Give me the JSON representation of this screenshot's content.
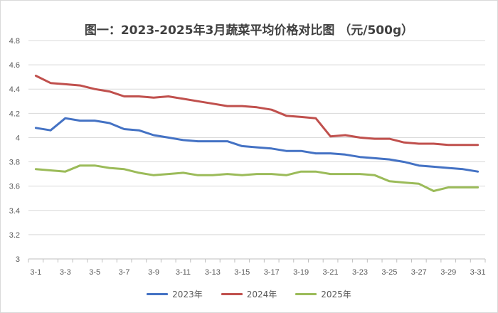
{
  "chart_data": {
    "type": "line",
    "title": "图一：2023-2025年3月蔬菜平均价格对比图 （元/500g）",
    "xlabel": "",
    "ylabel": "",
    "ylim": [
      3,
      4.8
    ],
    "yticks": [
      "3",
      "3.2",
      "3.4",
      "3.6",
      "3.8",
      "4",
      "4.2",
      "4.4",
      "4.6",
      "4.8"
    ],
    "categories": [
      "3-1",
      "3-2",
      "3-3",
      "3-4",
      "3-5",
      "3-6",
      "3-7",
      "3-8",
      "3-9",
      "3-10",
      "3-11",
      "3-12",
      "3-13",
      "3-14",
      "3-15",
      "3-16",
      "3-17",
      "3-18",
      "3-19",
      "3-20",
      "3-21",
      "3-22",
      "3-23",
      "3-24",
      "3-25",
      "3-26",
      "3-27",
      "3-28",
      "3-29",
      "3-30",
      "3-31"
    ],
    "xtick_labels": [
      "3-1",
      "3-3",
      "3-5",
      "3-7",
      "3-9",
      "3-11",
      "3-13",
      "3-15",
      "3-17",
      "3-19",
      "3-21",
      "3-23",
      "3-25",
      "3-27",
      "3-29",
      "3-31"
    ],
    "grid": true,
    "legend_position": "bottom",
    "series": [
      {
        "name": "2023年",
        "color": "#4472c4",
        "values": [
          4.08,
          4.06,
          4.16,
          4.14,
          4.14,
          4.12,
          4.07,
          4.06,
          4.02,
          4.0,
          3.98,
          3.97,
          3.97,
          3.97,
          3.93,
          3.92,
          3.91,
          3.89,
          3.89,
          3.87,
          3.87,
          3.86,
          3.84,
          3.83,
          3.82,
          3.8,
          3.77,
          3.76,
          3.75,
          3.74,
          3.72
        ]
      },
      {
        "name": "2024年",
        "color": "#c0504d",
        "values": [
          4.51,
          4.45,
          4.44,
          4.43,
          4.4,
          4.38,
          4.34,
          4.34,
          4.33,
          4.34,
          4.32,
          4.3,
          4.28,
          4.26,
          4.26,
          4.25,
          4.23,
          4.18,
          4.17,
          4.16,
          4.01,
          4.02,
          4.0,
          3.99,
          3.99,
          3.96,
          3.95,
          3.95,
          3.94,
          3.94,
          3.94
        ]
      },
      {
        "name": "2025年",
        "color": "#9bbb59",
        "values": [
          3.74,
          3.73,
          3.72,
          3.77,
          3.77,
          3.75,
          3.74,
          3.71,
          3.69,
          3.7,
          3.71,
          3.69,
          3.69,
          3.7,
          3.69,
          3.7,
          3.7,
          3.69,
          3.72,
          3.72,
          3.7,
          3.7,
          3.7,
          3.69,
          3.64,
          3.63,
          3.62,
          3.56,
          3.59,
          3.59,
          3.59
        ]
      }
    ]
  }
}
